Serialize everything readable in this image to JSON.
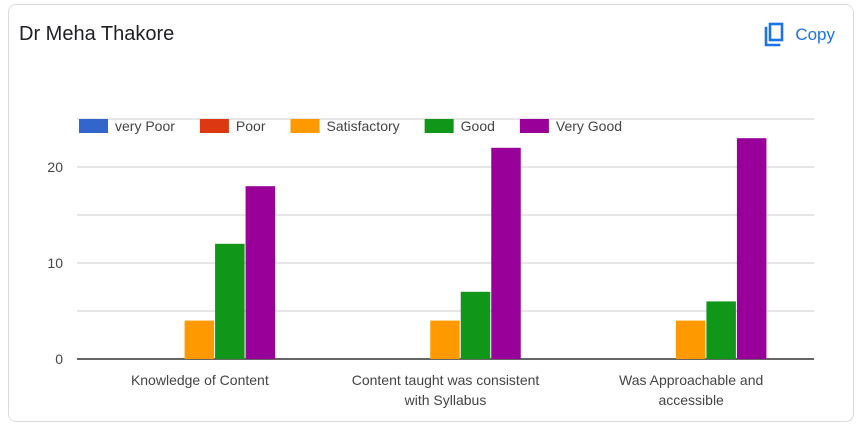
{
  "header": {
    "title": "Dr Meha Thakore",
    "copy_label": "Copy"
  },
  "colors": {
    "series": [
      "#3366cc",
      "#dc3912",
      "#ff9900",
      "#109618",
      "#990099"
    ],
    "grid": "#cccccc",
    "axis": "#333333",
    "text": "#444444",
    "accent": "#1a73e8"
  },
  "chart_data": {
    "type": "bar",
    "title": "Dr Meha Thakore",
    "legend_position": "top",
    "grid": true,
    "ylim": [
      0,
      25
    ],
    "yticks": [
      0,
      10,
      20
    ],
    "categories": [
      [
        "Knowledge of Content"
      ],
      [
        "Content taught was consistent",
        "with Syllabus"
      ],
      [
        "Was Approachable and",
        "accessible"
      ]
    ],
    "series": [
      {
        "name": "very Poor",
        "values": [
          0,
          0,
          0
        ]
      },
      {
        "name": "Poor",
        "values": [
          0,
          0,
          0
        ]
      },
      {
        "name": "Satisfactory",
        "values": [
          4,
          4,
          4
        ]
      },
      {
        "name": "Good",
        "values": [
          12,
          7,
          6
        ]
      },
      {
        "name": "Very Good",
        "values": [
          18,
          22,
          23
        ]
      }
    ]
  }
}
